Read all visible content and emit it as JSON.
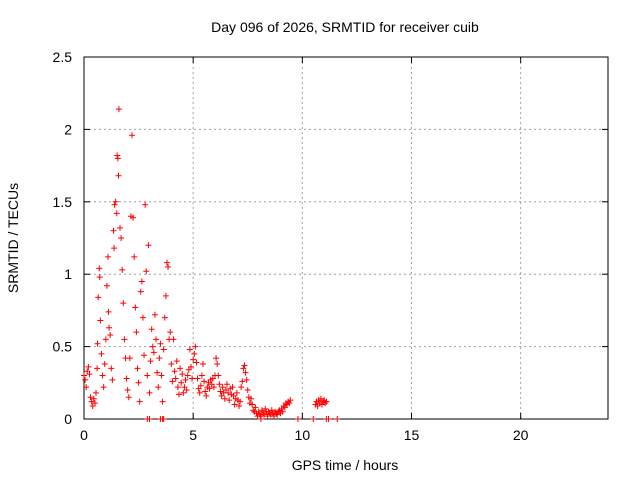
{
  "chart_data": {
    "type": "scatter",
    "title": "Day 096 of 2026, SRMTID for receiver cuib",
    "xlabel": "GPS time / hours",
    "ylabel": "SRMTID / TECUs",
    "xlim": [
      0,
      24
    ],
    "ylim": [
      0,
      2.5
    ],
    "x_ticks": [
      0,
      5,
      10,
      15,
      20
    ],
    "x_tick_labels": [
      "0",
      "5",
      "10",
      "15",
      "20"
    ],
    "y_ticks": [
      0,
      0.5,
      1,
      1.5,
      2,
      2.5
    ],
    "y_tick_labels": [
      "0",
      "0.5",
      "1",
      "1.5",
      "2",
      "2.5"
    ],
    "grid": true,
    "legend": "none",
    "marker": "+",
    "series": [
      {
        "name": "SRMTID",
        "color": "#ff0000",
        "points": [
          [
            0.0,
            0.3
          ],
          [
            0.05,
            0.27
          ],
          [
            0.1,
            0.22
          ],
          [
            0.15,
            0.33
          ],
          [
            0.2,
            0.36
          ],
          [
            0.25,
            0.31
          ],
          [
            0.3,
            0.15
          ],
          [
            0.35,
            0.12
          ],
          [
            0.4,
            0.09
          ],
          [
            0.45,
            0.14
          ],
          [
            0.5,
            0.11
          ],
          [
            0.55,
            0.18
          ],
          [
            0.6,
            0.35
          ],
          [
            0.62,
            0.52
          ],
          [
            0.65,
            0.84
          ],
          [
            0.7,
            1.04
          ],
          [
            0.72,
            0.98
          ],
          [
            0.75,
            0.68
          ],
          [
            0.8,
            0.45
          ],
          [
            0.85,
            0.3
          ],
          [
            0.9,
            0.22
          ],
          [
            0.95,
            0.38
          ],
          [
            1.0,
            0.55
          ],
          [
            1.05,
            0.92
          ],
          [
            1.1,
            1.12
          ],
          [
            1.12,
            0.74
          ],
          [
            1.15,
            0.63
          ],
          [
            1.2,
            0.58
          ],
          [
            1.25,
            0.35
          ],
          [
            1.3,
            0.27
          ],
          [
            1.35,
            1.3
          ],
          [
            1.38,
            1.18
          ],
          [
            1.4,
            1.48
          ],
          [
            1.45,
            1.5
          ],
          [
            1.5,
            1.42
          ],
          [
            1.52,
            1.82
          ],
          [
            1.55,
            1.8
          ],
          [
            1.58,
            1.68
          ],
          [
            1.6,
            2.14
          ],
          [
            1.65,
            1.32
          ],
          [
            1.7,
            1.25
          ],
          [
            1.75,
            1.03
          ],
          [
            1.8,
            0.8
          ],
          [
            1.85,
            0.55
          ],
          [
            1.9,
            0.42
          ],
          [
            1.95,
            0.28
          ],
          [
            2.0,
            0.2
          ],
          [
            2.05,
            0.15
          ],
          [
            2.1,
            0.42
          ],
          [
            2.15,
            1.4
          ],
          [
            2.2,
            1.96
          ],
          [
            2.25,
            1.39
          ],
          [
            2.3,
            1.12
          ],
          [
            2.35,
            0.77
          ],
          [
            2.4,
            0.6
          ],
          [
            2.45,
            0.35
          ],
          [
            2.5,
            0.25
          ],
          [
            2.55,
            0.12
          ],
          [
            2.6,
            0.88
          ],
          [
            2.65,
            0.95
          ],
          [
            2.7,
            0.7
          ],
          [
            2.75,
            0.44
          ],
          [
            2.8,
            1.48
          ],
          [
            2.85,
            1.02
          ],
          [
            2.9,
            0.3
          ],
          [
            2.95,
            1.2
          ],
          [
            3.0,
            0.18
          ],
          [
            3.05,
            0.4
          ],
          [
            3.1,
            0.62
          ],
          [
            3.15,
            0.5
          ],
          [
            3.2,
            0.46
          ],
          [
            3.25,
            0.72
          ],
          [
            3.3,
            0.55
          ],
          [
            3.35,
            0.32
          ],
          [
            3.4,
            0.22
          ],
          [
            3.45,
            0.42
          ],
          [
            3.5,
            0.52
          ],
          [
            3.55,
            0.3
          ],
          [
            3.6,
            0.12
          ],
          [
            3.65,
            0.48
          ],
          [
            3.7,
            0.7
          ],
          [
            3.75,
            0.85
          ],
          [
            3.8,
            1.08
          ],
          [
            3.85,
            1.05
          ],
          [
            3.9,
            0.55
          ],
          [
            3.95,
            0.6
          ],
          [
            4.0,
            0.38
          ],
          [
            4.05,
            0.26
          ],
          [
            4.1,
            0.55
          ],
          [
            4.15,
            0.33
          ],
          [
            4.2,
            0.28
          ],
          [
            4.25,
            0.4
          ],
          [
            4.3,
            0.22
          ],
          [
            4.35,
            0.17
          ],
          [
            4.4,
            0.35
          ],
          [
            4.45,
            0.25
          ],
          [
            4.5,
            0.31
          ],
          [
            4.55,
            0.18
          ],
          [
            4.6,
            0.22
          ],
          [
            4.65,
            0.27
          ],
          [
            4.7,
            0.2
          ],
          [
            4.75,
            0.3
          ],
          [
            4.8,
            0.34
          ],
          [
            4.85,
            0.48
          ],
          [
            4.9,
            0.36
          ],
          [
            4.95,
            0.28
          ],
          [
            5.0,
            0.41
          ],
          [
            5.05,
            0.45
          ],
          [
            5.1,
            0.5
          ],
          [
            5.15,
            0.39
          ],
          [
            5.2,
            0.28
          ],
          [
            5.25,
            0.21
          ],
          [
            5.3,
            0.18
          ],
          [
            5.35,
            0.23
          ],
          [
            5.4,
            0.3
          ],
          [
            5.45,
            0.38
          ],
          [
            5.5,
            0.26
          ],
          [
            5.55,
            0.19
          ],
          [
            5.6,
            0.16
          ],
          [
            5.65,
            0.22
          ],
          [
            5.7,
            0.25
          ],
          [
            5.75,
            0.21
          ],
          [
            5.8,
            0.27
          ],
          [
            5.85,
            0.24
          ],
          [
            5.9,
            0.28
          ],
          [
            5.95,
            0.22
          ],
          [
            6.0,
            0.3
          ],
          [
            6.05,
            0.42
          ],
          [
            6.1,
            0.38
          ],
          [
            6.15,
            0.3
          ],
          [
            6.2,
            0.24
          ],
          [
            6.25,
            0.19
          ],
          [
            6.3,
            0.16
          ],
          [
            6.35,
            0.22
          ],
          [
            6.4,
            0.18
          ],
          [
            6.45,
            0.14
          ],
          [
            6.5,
            0.2
          ],
          [
            6.55,
            0.24
          ],
          [
            6.6,
            0.18
          ],
          [
            6.65,
            0.13
          ],
          [
            6.7,
            0.21
          ],
          [
            6.75,
            0.17
          ],
          [
            6.8,
            0.22
          ],
          [
            6.85,
            0.16
          ],
          [
            6.9,
            0.1
          ],
          [
            6.95,
            0.14
          ],
          [
            7.0,
            0.18
          ],
          [
            7.05,
            0.13
          ],
          [
            7.1,
            0.09
          ],
          [
            7.15,
            0.12
          ],
          [
            7.2,
            0.22
          ],
          [
            7.25,
            0.26
          ],
          [
            7.3,
            0.35
          ],
          [
            7.35,
            0.37
          ],
          [
            7.4,
            0.32
          ],
          [
            7.45,
            0.27
          ],
          [
            7.5,
            0.2
          ],
          [
            7.55,
            0.15
          ],
          [
            7.6,
            0.11
          ],
          [
            7.65,
            0.14
          ],
          [
            7.7,
            0.1
          ],
          [
            7.75,
            0.06
          ],
          [
            7.8,
            0.05
          ],
          [
            7.85,
            0.08
          ],
          [
            7.9,
            0.04
          ],
          [
            7.95,
            0.02
          ],
          [
            8.0,
            0.05
          ],
          [
            8.05,
            0.03
          ],
          [
            8.1,
            0.02
          ],
          [
            8.15,
            0.06
          ],
          [
            8.2,
            0.04
          ],
          [
            8.25,
            0.03
          ],
          [
            8.3,
            0.07
          ],
          [
            8.35,
            0.05
          ],
          [
            8.4,
            0.02
          ],
          [
            8.45,
            0.05
          ],
          [
            8.5,
            0.04
          ],
          [
            8.55,
            0.03
          ],
          [
            8.6,
            0.06
          ],
          [
            8.65,
            0.04
          ],
          [
            8.7,
            0.02
          ],
          [
            8.75,
            0.05
          ],
          [
            8.8,
            0.04
          ],
          [
            8.85,
            0.03
          ],
          [
            8.9,
            0.05
          ],
          [
            8.95,
            0.06
          ],
          [
            9.0,
            0.04
          ],
          [
            9.05,
            0.07
          ],
          [
            9.1,
            0.05
          ],
          [
            9.15,
            0.09
          ],
          [
            9.2,
            0.08
          ],
          [
            9.25,
            0.11
          ],
          [
            9.3,
            0.1
          ],
          [
            9.35,
            0.12
          ],
          [
            9.4,
            0.11
          ],
          [
            9.45,
            0.13
          ],
          [
            10.6,
            0.1
          ],
          [
            10.65,
            0.12
          ],
          [
            10.7,
            0.09
          ],
          [
            10.75,
            0.13
          ],
          [
            10.8,
            0.11
          ],
          [
            10.85,
            0.14
          ],
          [
            10.9,
            0.1
          ],
          [
            10.95,
            0.12
          ],
          [
            11.0,
            0.13
          ],
          [
            11.05,
            0.11
          ],
          [
            11.1,
            0.12
          ],
          [
            2.9,
            0.0
          ],
          [
            3.0,
            0.0
          ],
          [
            3.5,
            0.0
          ],
          [
            3.6,
            0.0
          ],
          [
            3.65,
            0.0
          ],
          [
            8.1,
            0.0
          ],
          [
            9.8,
            0.0
          ],
          [
            10.5,
            0.0
          ],
          [
            11.1,
            0.0
          ],
          [
            11.2,
            0.0
          ],
          [
            11.6,
            0.0
          ]
        ]
      }
    ]
  }
}
